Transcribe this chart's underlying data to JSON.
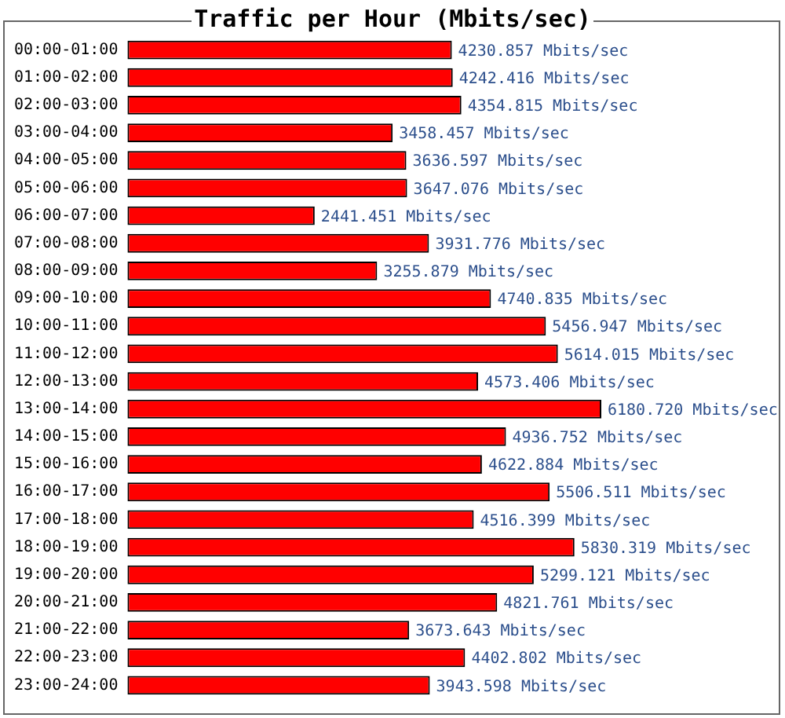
{
  "chart_data": {
    "type": "bar",
    "orientation": "horizontal",
    "title": "Traffic per Hour (Mbits/sec)",
    "categories": [
      "00:00-01:00",
      "01:00-02:00",
      "02:00-03:00",
      "03:00-04:00",
      "04:00-05:00",
      "05:00-06:00",
      "06:00-07:00",
      "07:00-08:00",
      "08:00-09:00",
      "09:00-10:00",
      "10:00-11:00",
      "11:00-12:00",
      "12:00-13:00",
      "13:00-14:00",
      "14:00-15:00",
      "15:00-16:00",
      "16:00-17:00",
      "17:00-18:00",
      "18:00-19:00",
      "19:00-20:00",
      "20:00-21:00",
      "21:00-22:00",
      "22:00-23:00",
      "23:00-24:00"
    ],
    "values": [
      4230.857,
      4242.416,
      4354.815,
      3458.457,
      3636.597,
      3647.076,
      2441.451,
      3931.776,
      3255.879,
      4740.835,
      5456.947,
      5614.015,
      4573.406,
      6180.72,
      4936.752,
      4622.884,
      5506.511,
      4516.399,
      5830.319,
      5299.121,
      4821.761,
      3673.643,
      4402.802,
      3943.598
    ],
    "value_labels": [
      "4230.857 Mbits/sec",
      "4242.416 Mbits/sec",
      "4354.815 Mbits/sec",
      "3458.457 Mbits/sec",
      "3636.597 Mbits/sec",
      "3647.076 Mbits/sec",
      "2441.451 Mbits/sec",
      "3931.776 Mbits/sec",
      "3255.879 Mbits/sec",
      "4740.835 Mbits/sec",
      "5456.947 Mbits/sec",
      "5614.015 Mbits/sec",
      "4573.406 Mbits/sec",
      "6180.720 Mbits/sec",
      "4936.752 Mbits/sec",
      "4622.884 Mbits/sec",
      "5506.511 Mbits/sec",
      "4516.399 Mbits/sec",
      "5830.319 Mbits/sec",
      "5299.121 Mbits/sec",
      "4821.761 Mbits/sec",
      "3673.643 Mbits/sec",
      "4402.802 Mbits/sec",
      "3943.598 Mbits/sec"
    ],
    "color": "#ff0000",
    "tick_labels": "y"
  }
}
